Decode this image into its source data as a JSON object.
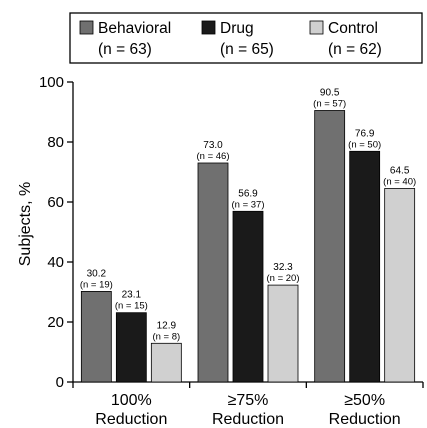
{
  "chart_data": {
    "type": "bar",
    "categories": [
      {
        "line1": "100%",
        "line2": "Reduction"
      },
      {
        "line1": "≥75%",
        "line2": "Reduction"
      },
      {
        "line1": "≥50%",
        "line2": "Reduction"
      }
    ],
    "series": [
      {
        "name": "Behavioral",
        "n_label": "(n = 63)",
        "color": "#707070",
        "values": [
          30.2,
          73.0,
          90.5
        ],
        "value_labels": [
          "30.2",
          "73.0",
          "90.5"
        ],
        "n_labels": [
          "(n = 19)",
          "(n = 46)",
          "(n = 57)"
        ]
      },
      {
        "name": "Drug",
        "n_label": "(n = 65)",
        "color": "#1a1a1a",
        "values": [
          23.1,
          56.9,
          76.9
        ],
        "value_labels": [
          "23.1",
          "56.9",
          "76.9"
        ],
        "n_labels": [
          "(n = 15)",
          "(n = 37)",
          "(n = 50)"
        ]
      },
      {
        "name": "Control",
        "n_label": "(n = 62)",
        "color": "#d0d0d0",
        "values": [
          12.9,
          32.3,
          64.5
        ],
        "value_labels": [
          "12.9",
          "32.3",
          "64.5"
        ],
        "n_labels": [
          "(n = 8)",
          "(n = 20)",
          "(n = 40)"
        ]
      }
    ],
    "ylabel": "Subjects, %",
    "ylim": [
      0,
      100
    ],
    "yticks": [
      0,
      20,
      40,
      60,
      80,
      100
    ],
    "legend_position": "top"
  }
}
